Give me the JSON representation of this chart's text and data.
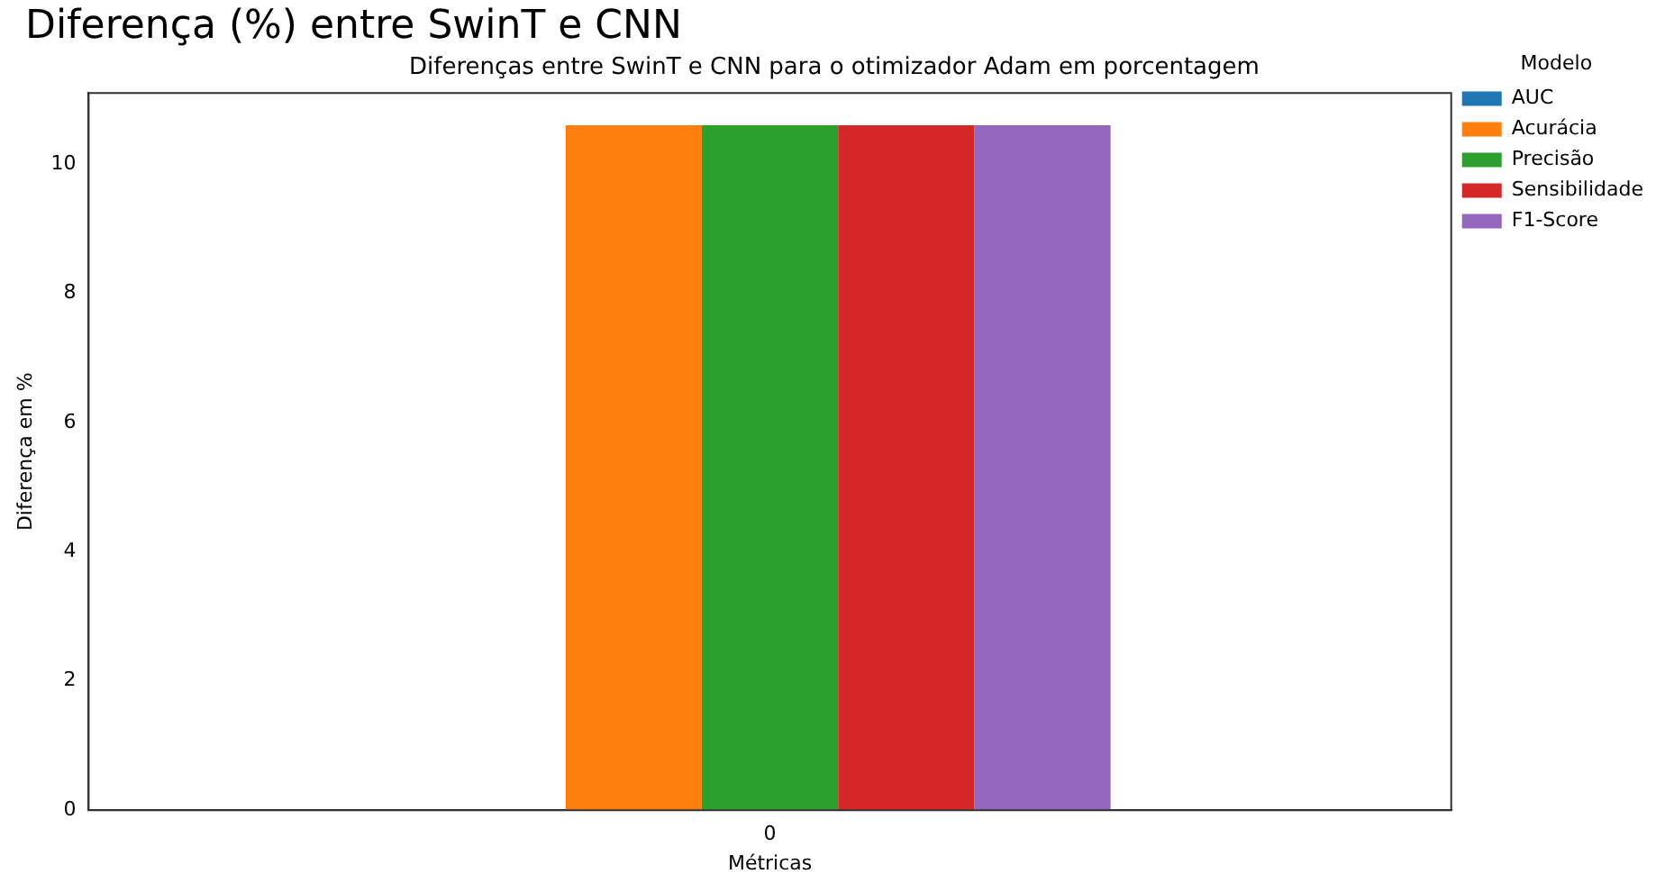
{
  "chart_data": {
    "type": "bar",
    "title": "Diferença (%) entre SwinT e CNN",
    "subtitle": "Diferenças entre SwinT e CNN para o otimizador Adam em porcentagem",
    "xlabel": "Métricas",
    "ylabel": "Diferença em %",
    "legend_title": "Modelo",
    "categories": [
      "0"
    ],
    "series": [
      {
        "name": "AUC",
        "color": "#1f77b4",
        "values": [
          0
        ]
      },
      {
        "name": "Acurácia",
        "color": "#ff7f0e",
        "values": [
          10.6
        ]
      },
      {
        "name": "Precisão",
        "color": "#2ca02c",
        "values": [
          10.6
        ]
      },
      {
        "name": "Sensibilidade",
        "color": "#d62728",
        "values": [
          10.6
        ]
      },
      {
        "name": "F1-Score",
        "color": "#9467bd",
        "values": [
          10.6
        ]
      }
    ],
    "ylim": [
      0,
      11.1
    ],
    "yticks": [
      0,
      2,
      4,
      6,
      8,
      10
    ],
    "grid": false,
    "legend": "top right"
  }
}
